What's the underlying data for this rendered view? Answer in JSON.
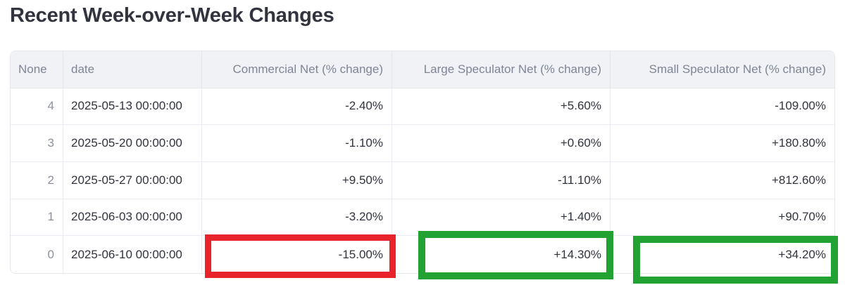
{
  "title": "Recent Week-over-Week Changes",
  "table": {
    "columns": [
      "None",
      "date",
      "Commercial Net (% change)",
      "Large Speculator Net (% change)",
      "Small Speculator Net (% change)"
    ],
    "rows": [
      {
        "index": "4",
        "date": "2025-05-13 00:00:00",
        "commercial_net": "-2.40%",
        "large_spec_net": "+5.60%",
        "small_spec_net": "-109.00%"
      },
      {
        "index": "3",
        "date": "2025-05-20 00:00:00",
        "commercial_net": "-1.10%",
        "large_spec_net": "+0.60%",
        "small_spec_net": "+180.80%"
      },
      {
        "index": "2",
        "date": "2025-05-27 00:00:00",
        "commercial_net": "+9.50%",
        "large_spec_net": "-11.10%",
        "small_spec_net": "+812.60%"
      },
      {
        "index": "1",
        "date": "2025-06-03 00:00:00",
        "commercial_net": "-3.20%",
        "large_spec_net": "+1.40%",
        "small_spec_net": "+90.70%"
      },
      {
        "index": "0",
        "date": "2025-06-10 00:00:00",
        "commercial_net": "-15.00%",
        "large_spec_net": "+14.30%",
        "small_spec_net": "+34.20%"
      }
    ]
  },
  "annotations": {
    "boxes": [
      {
        "target": "latest-commercial-net-cell",
        "color": "#E8232B"
      },
      {
        "target": "latest-large-speculator-net-cell",
        "color": "#21A233"
      },
      {
        "target": "latest-small-speculator-net-cell",
        "color": "#21A233"
      }
    ]
  },
  "colors": {
    "title_text": "#31333F",
    "header_bg": "#F0F2F6",
    "header_text": "#7F8595",
    "body_text": "#31333F",
    "index_text": "#8B909C",
    "grid_line": "#E9EBF2",
    "negative_highlight": "#E8232B",
    "positive_highlight": "#21A233"
  }
}
